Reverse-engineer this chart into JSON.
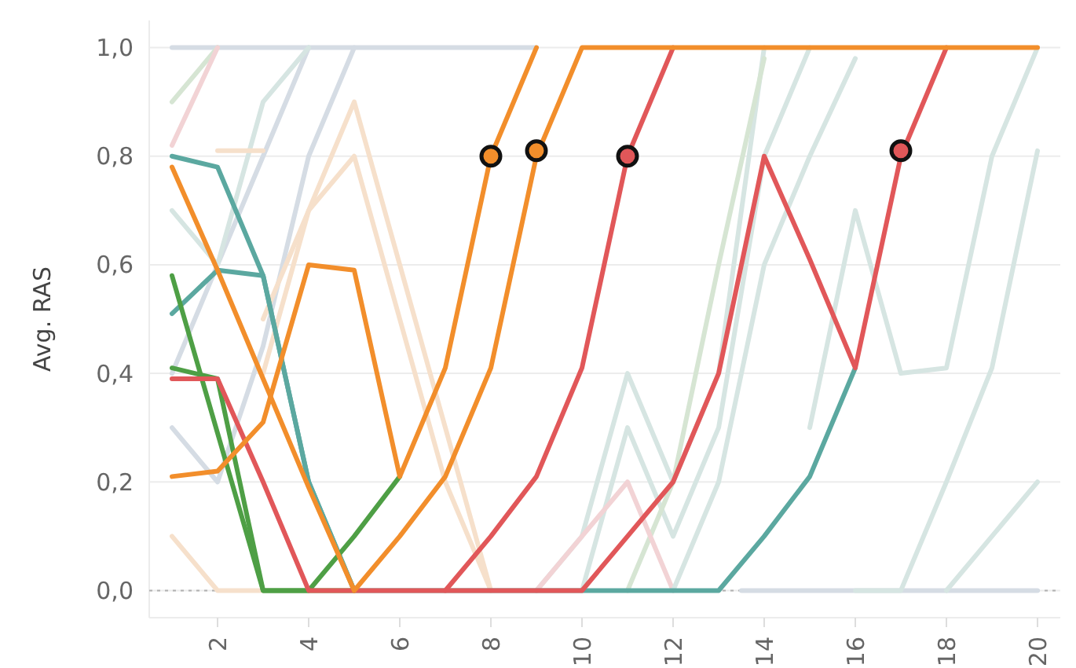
{
  "chart_data": {
    "type": "line",
    "ylabel": "Avg. RAS",
    "xlim": [
      0.5,
      20.5
    ],
    "ylim": [
      -0.05,
      1.05
    ],
    "xticks": [
      2,
      4,
      6,
      8,
      10,
      12,
      14,
      16,
      18,
      20
    ],
    "yticks": [
      {
        "value": 0,
        "label": "0,0"
      },
      {
        "value": 0.2,
        "label": "0,2"
      },
      {
        "value": 0.4,
        "label": "0,4"
      },
      {
        "value": 0.6,
        "label": "0,6"
      },
      {
        "value": 0.8,
        "label": "0,8"
      },
      {
        "value": 1,
        "label": "1,0"
      }
    ],
    "grid": "y",
    "marker": "none",
    "line_style": "solid",
    "ref_lines": [
      {
        "axis": "y",
        "value": 0,
        "color": "#b0b0b0",
        "line_style": "dotted"
      }
    ],
    "series": [
      {
        "color": "#d5dce4",
        "x": [
          1,
          2,
          3,
          4,
          5,
          6,
          7,
          8,
          9
        ],
        "values": [
          1,
          1,
          1,
          1,
          1,
          1,
          1,
          1,
          1
        ]
      },
      {
        "color": "#d5dce4",
        "x": [
          13.5,
          14,
          15,
          16,
          17,
          18,
          19,
          20
        ],
        "values": [
          0,
          0,
          0,
          0,
          0,
          0,
          0,
          0
        ]
      },
      {
        "color": "#d5dce4",
        "x": [
          1,
          2,
          3,
          4
        ],
        "values": [
          0.4,
          0.6,
          0.8,
          1
        ]
      },
      {
        "color": "#d5dce4",
        "x": [
          1,
          2,
          3,
          4,
          5
        ],
        "values": [
          0.3,
          0.2,
          0.45,
          0.8,
          1
        ]
      },
      {
        "color": "#d6e5e2",
        "x": [
          1,
          2,
          3,
          4
        ],
        "values": [
          0.7,
          0.6,
          0.9,
          1
        ]
      },
      {
        "color": "#d6e5d3",
        "x": [
          1,
          2
        ],
        "values": [
          0.9,
          1
        ]
      },
      {
        "color": "#f2d3d5",
        "x": [
          1,
          2
        ],
        "values": [
          0.82,
          1
        ]
      },
      {
        "color": "#f6e0cb",
        "x": [
          1,
          2,
          3
        ],
        "values": [
          0.1,
          0,
          0
        ]
      },
      {
        "color": "#f6e0cb",
        "x": [
          2,
          3
        ],
        "values": [
          0.81,
          0.81
        ]
      },
      {
        "color": "#f6e0cb",
        "x": [
          3,
          4,
          5,
          6,
          7,
          8
        ],
        "values": [
          0.4,
          0.7,
          0.9,
          0.6,
          0.3,
          0
        ]
      },
      {
        "color": "#f6e0cb",
        "x": [
          3,
          4,
          5,
          6,
          7,
          8
        ],
        "values": [
          0.5,
          0.7,
          0.8,
          0.5,
          0.2,
          0
        ]
      },
      {
        "color": "#d6e5e2",
        "x": [
          9,
          10,
          11,
          12,
          13,
          14
        ],
        "values": [
          0,
          0.1,
          0.4,
          0.2,
          0.4,
          1
        ]
      },
      {
        "color": "#d6e5e2",
        "x": [
          10,
          11,
          12,
          13,
          14,
          15
        ],
        "values": [
          0,
          0.3,
          0.1,
          0.3,
          0.8,
          1
        ]
      },
      {
        "color": "#d6e5d3",
        "x": [
          11,
          12,
          13,
          14
        ],
        "values": [
          0,
          0.2,
          0.6,
          0.98
        ]
      },
      {
        "color": "#f2d3d5",
        "x": [
          9,
          10,
          11,
          12
        ],
        "values": [
          0,
          0.1,
          0.2,
          0
        ]
      },
      {
        "color": "#d6e5e2",
        "x": [
          12,
          13,
          14,
          15,
          16
        ],
        "values": [
          0,
          0.2,
          0.6,
          0.8,
          0.98
        ]
      },
      {
        "color": "#d6e5e2",
        "x": [
          15,
          16,
          17,
          18,
          19,
          20
        ],
        "values": [
          0.3,
          0.7,
          0.4,
          0.41,
          0.8,
          1
        ]
      },
      {
        "color": "#d6e5e2",
        "x": [
          16,
          17,
          18,
          19,
          20
        ],
        "values": [
          0,
          0,
          0.2,
          0.41,
          0.81
        ]
      },
      {
        "color": "#d6e5e2",
        "x": [
          18,
          19,
          20
        ],
        "values": [
          0,
          0.1,
          0.2
        ]
      },
      {
        "color": "#5ba8a0",
        "x": [
          1,
          2,
          3,
          4,
          5
        ],
        "values": [
          0.51,
          0.59,
          0.58,
          0.2,
          0
        ]
      },
      {
        "color": "#5ba8a0",
        "x": [
          1,
          2,
          3,
          4,
          5,
          6,
          7,
          8,
          9,
          10,
          11,
          12,
          13,
          14,
          15,
          16
        ],
        "values": [
          0.8,
          0.78,
          0.58,
          0.2,
          0,
          0,
          0,
          0,
          0,
          0,
          0,
          0,
          0,
          0.1,
          0.21,
          0.41
        ]
      },
      {
        "color": "#4e9f45",
        "x": [
          1,
          2,
          3,
          4,
          5,
          6
        ],
        "values": [
          0.58,
          0.29,
          0,
          0,
          0.1,
          0.21
        ]
      },
      {
        "color": "#4e9f45",
        "x": [
          1,
          2,
          3,
          4,
          5
        ],
        "values": [
          0.41,
          0.39,
          0,
          0,
          0
        ]
      },
      {
        "color": "#e15759",
        "x": [
          1,
          2,
          3,
          4,
          5,
          6,
          7,
          8,
          9,
          10,
          11,
          12
        ],
        "values": [
          0.39,
          0.39,
          0.2,
          0,
          0,
          0,
          0,
          0.1,
          0.21,
          0.41,
          0.8,
          1
        ]
      },
      {
        "color": "#e15759",
        "x": [
          7,
          8,
          9,
          10,
          11,
          12,
          13,
          14,
          15,
          16,
          17,
          18
        ],
        "values": [
          0,
          0,
          0,
          0,
          0.1,
          0.2,
          0.4,
          0.8,
          0.61,
          0.41,
          0.8,
          1
        ]
      },
      {
        "color": "#f28e2b",
        "x": [
          1,
          2,
          3,
          4,
          5,
          6,
          7,
          8,
          9,
          10,
          11,
          12,
          13,
          14,
          15,
          16,
          17,
          18,
          19,
          20
        ],
        "values": [
          0.78,
          0.59,
          0.39,
          0.19,
          0,
          0.1,
          0.21,
          0.41,
          0.8,
          1,
          1,
          1,
          1,
          1,
          1,
          1,
          1,
          1,
          1,
          1
        ]
      },
      {
        "color": "#f28e2b",
        "x": [
          1,
          2,
          3,
          4,
          5,
          6,
          7,
          8,
          9
        ],
        "values": [
          0.21,
          0.22,
          0.31,
          0.6,
          0.59,
          0.21,
          0.41,
          0.8,
          1
        ]
      },
      {
        "type": "scatter",
        "marker": "circle",
        "x": [
          8,
          9,
          11,
          17
        ],
        "values": [
          0.8,
          0.81,
          0.8,
          0.81
        ],
        "colors": [
          "#f28e2b",
          "#f28e2b",
          "#e15759",
          "#e15759"
        ]
      }
    ]
  }
}
